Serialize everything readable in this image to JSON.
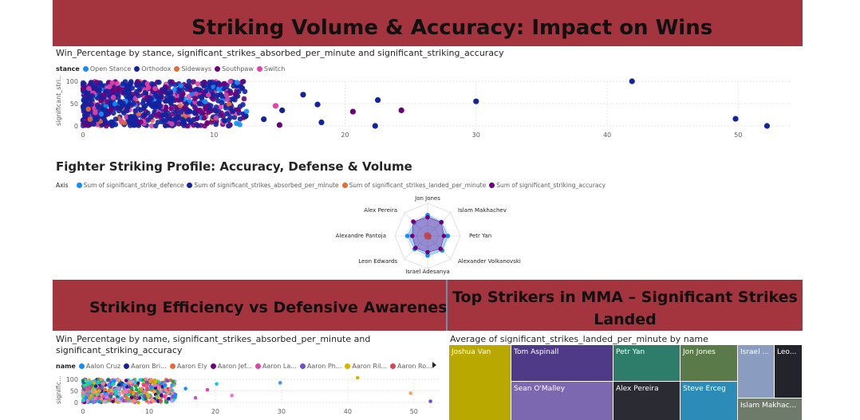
{
  "banners": {
    "top": "Striking Volume & Accuracy: Impact on Wins",
    "left": "Striking Efficiency vs Defensive Awareness",
    "right": "Top Strikers in MMA – Significant Strikes Landed"
  },
  "scatter1": {
    "subtitle": "Win_Percentage by stance, significant_strikes_absorbed_per_minute and significant_striking_accuracy",
    "legend_title": "stance",
    "legend": [
      {
        "name": "Open Stance",
        "color": "#118DFF"
      },
      {
        "name": "Orthodox",
        "color": "#12239E"
      },
      {
        "name": "Sideways",
        "color": "#E66C37"
      },
      {
        "name": "Southpaw",
        "color": "#6B007B"
      },
      {
        "name": "Switch",
        "color": "#E044A7"
      }
    ],
    "ylabel": "significant_stri...",
    "y_ticks": [
      "100",
      "50",
      "0"
    ],
    "x_ticks": [
      "0",
      "10",
      "20",
      "30",
      "40",
      "50"
    ]
  },
  "radar": {
    "title": "Fighter Striking Profile: Accuracy, Defense & Volume",
    "legend_title": "Axis",
    "legend": [
      {
        "name": "Sum of significant_strike_defence",
        "color": "#118DFF"
      },
      {
        "name": "Sum of significant_strikes_absorbed_per_minute",
        "color": "#12239E"
      },
      {
        "name": "Sum of significant_strikes_landed_per_minute",
        "color": "#E66C37"
      },
      {
        "name": "Sum of significant_striking_accuracy",
        "color": "#6B007B"
      }
    ]
  },
  "scatter2": {
    "subtitle_line1": "Win_Percentage by name, significant_strikes_absorbed_per_minute and",
    "subtitle_line2": "significant_striking_accuracy",
    "legend_title": "name",
    "legend": [
      {
        "name": "Aalon Cruz",
        "color": "#118DFF"
      },
      {
        "name": "Aaron Bri...",
        "color": "#12239E"
      },
      {
        "name": "Aaron Ely",
        "color": "#E66C37"
      },
      {
        "name": "Aaron Jef...",
        "color": "#6B007B"
      },
      {
        "name": "Aaron La...",
        "color": "#E044A7"
      },
      {
        "name": "Aaron Ph...",
        "color": "#744EC2"
      },
      {
        "name": "Aaron Ril...",
        "color": "#D9B300"
      },
      {
        "name": "Aaron Ro...",
        "color": "#D64550"
      }
    ],
    "ylabel": "signific...",
    "y_ticks": [
      "100",
      "50",
      "0"
    ],
    "x_ticks": [
      "0",
      "10",
      "20",
      "30",
      "40",
      "50"
    ]
  },
  "treemap": {
    "subtitle": "Average of significant_strikes_landed_per_minute by name"
  },
  "chart_data": [
    {
      "type": "scatter",
      "subtitle": "Win_Percentage by stance, significant_strikes_absorbed_per_minute and significant_striking_accuracy",
      "xlim": [
        0,
        54
      ],
      "ylim": [
        0,
        100
      ],
      "ylabel": "significant_stri...",
      "outliers": [
        {
          "x": 41.9,
          "y": 100,
          "series": "Orthodox"
        },
        {
          "x": 49.8,
          "y": 16,
          "series": "Orthodox"
        },
        {
          "x": 52.2,
          "y": 0,
          "series": "Orthodox"
        },
        {
          "x": 30,
          "y": 55,
          "series": "Orthodox"
        },
        {
          "x": 22.5,
          "y": 58,
          "series": "Orthodox"
        },
        {
          "x": 24.3,
          "y": 35,
          "series": "Southpaw"
        },
        {
          "x": 20.6,
          "y": 32,
          "series": "Southpaw"
        },
        {
          "x": 17.9,
          "y": 48,
          "series": "Orthodox"
        },
        {
          "x": 16.8,
          "y": 70,
          "series": "Orthodox"
        },
        {
          "x": 18.2,
          "y": 8,
          "series": "Orthodox"
        },
        {
          "x": 22.3,
          "y": 0,
          "series": "Orthodox"
        },
        {
          "x": 14.7,
          "y": 45,
          "series": "Switch"
        },
        {
          "x": 15.2,
          "y": 35,
          "series": "Orthodox"
        },
        {
          "x": 15.0,
          "y": 2,
          "series": "Southpaw"
        },
        {
          "x": 13.8,
          "y": 15,
          "series": "Orthodox"
        }
      ]
    },
    {
      "type": "radar",
      "title": "Fighter Striking Profile: Accuracy, Defense & Volume",
      "axes": [
        "Jon Jones",
        "Islam Makhachev",
        "Petr Yan",
        "Alexander Volkanovski",
        "Israel Adesanya",
        "Leon Edwards",
        "Alexandre Pantoja",
        "Alex Pereira"
      ],
      "series": [
        {
          "name": "Sum of significant_strike_defence",
          "values": [
            0.64,
            0.6,
            0.62,
            0.63,
            0.6,
            0.56,
            0.62,
            0.58
          ]
        },
        {
          "name": "Sum of significant_strikes_absorbed_per_minute",
          "values": [
            0.02,
            0.02,
            0.04,
            0.03,
            0.03,
            0.03,
            0.03,
            0.04
          ]
        },
        {
          "name": "Sum of significant_strikes_landed_per_minute",
          "values": [
            0.04,
            0.03,
            0.05,
            0.06,
            0.04,
            0.04,
            0.04,
            0.05
          ]
        },
        {
          "name": "Sum of significant_striking_accuracy",
          "values": [
            0.57,
            0.59,
            0.5,
            0.56,
            0.5,
            0.52,
            0.47,
            0.62
          ]
        }
      ]
    },
    {
      "type": "scatter",
      "subtitle": "Win_Percentage by name, significant_strikes_absorbed_per_minute and significant_striking_accuracy",
      "xlim": [
        0,
        54
      ],
      "ylim": [
        0,
        100
      ],
      "ylabel": "signific..."
    },
    {
      "type": "treemap",
      "subtitle": "Average of significant_strikes_landed_per_minute by name",
      "tiles": [
        {
          "name": "Joshua Van",
          "color": "#B8A800"
        },
        {
          "name": "Tom Aspinall",
          "color": "#4E3A87"
        },
        {
          "name": "Sean O'Malley",
          "color": "#7B68B0"
        },
        {
          "name": "Petr Yan",
          "color": "#2E7D6B"
        },
        {
          "name": "Alex Pereira",
          "color": "#2B2B33"
        },
        {
          "name": "Jon Jones",
          "color": "#5B7A4A"
        },
        {
          "name": "Steve Erceg",
          "color": "#2D8BB8"
        },
        {
          "name": "Israel ...",
          "color": "#8A9DC0"
        },
        {
          "name": "Leo...",
          "color": "#23232B"
        },
        {
          "name": "Islam Makhac...",
          "color": "#6E7A6A"
        }
      ]
    }
  ]
}
